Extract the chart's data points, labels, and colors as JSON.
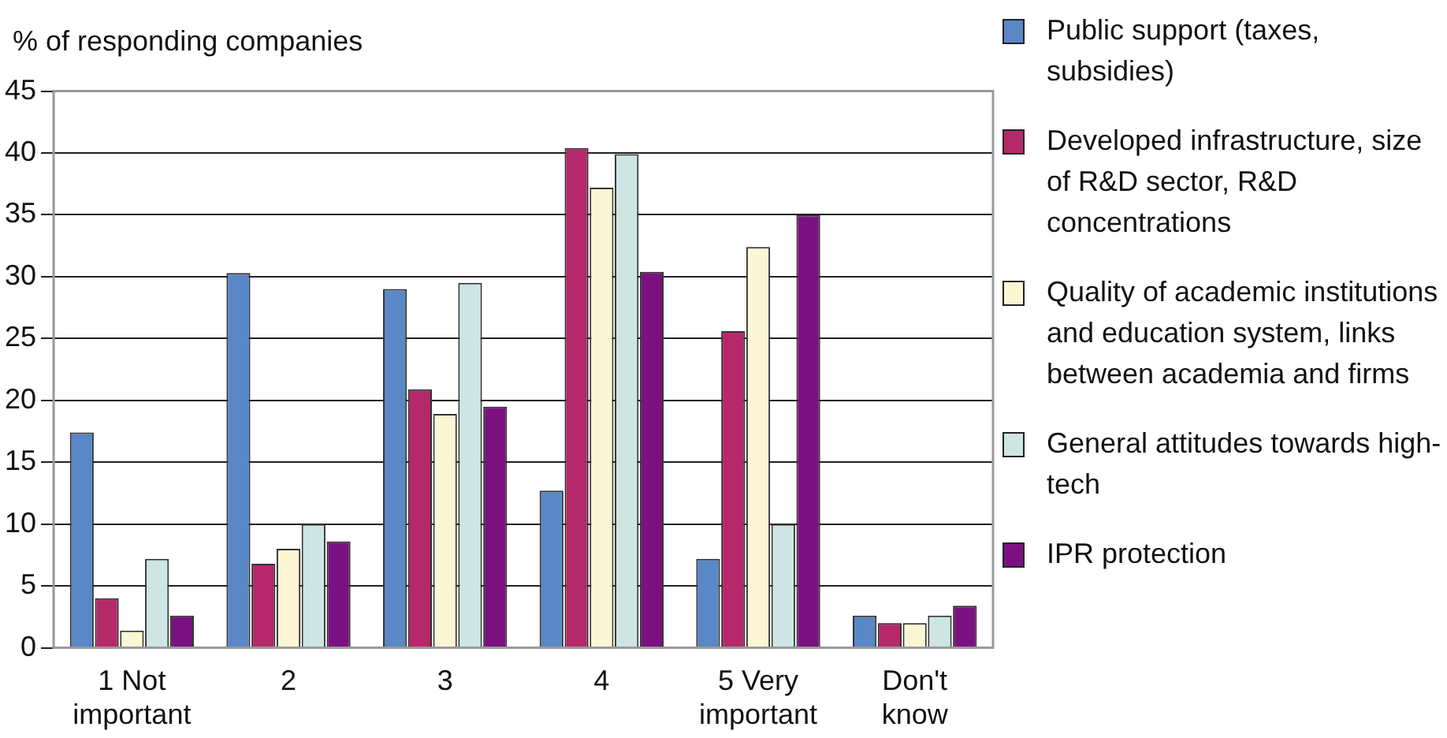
{
  "chart_data": {
    "type": "bar",
    "ylabel": "% of responding companies",
    "categories": [
      "1 Not important",
      "2",
      "3",
      "4",
      "5 Very important",
      "Don't know"
    ],
    "series": [
      {
        "name": "Public support (taxes, subsidies)",
        "color": "#5a87c5",
        "values": [
          17.4,
          30.3,
          29.0,
          12.7,
          7.2,
          2.6
        ]
      },
      {
        "name": "Developed infrastructure, size of R&D sector, R&D concentrations",
        "color": "#b5296a",
        "values": [
          4.0,
          6.8,
          20.9,
          40.4,
          25.6,
          2.0
        ]
      },
      {
        "name": "Quality of academic institutions and education system, links between academia and firms",
        "color": "#fdf6d4",
        "values": [
          1.4,
          8.0,
          18.9,
          37.2,
          32.4,
          2.0
        ]
      },
      {
        "name": "General attitudes towards high-tech",
        "color": "#cde6e3",
        "values": [
          7.2,
          10.0,
          29.5,
          39.9,
          10.0,
          2.6
        ]
      },
      {
        "name": "IPR protection",
        "color": "#7b1180",
        "values": [
          2.6,
          8.6,
          19.5,
          30.4,
          35.0,
          3.4
        ]
      }
    ],
    "ylim": [
      0,
      45
    ],
    "yticks": [
      0,
      5,
      10,
      15,
      20,
      25,
      30,
      35,
      40,
      45
    ],
    "grid": "y",
    "legend": "right"
  }
}
